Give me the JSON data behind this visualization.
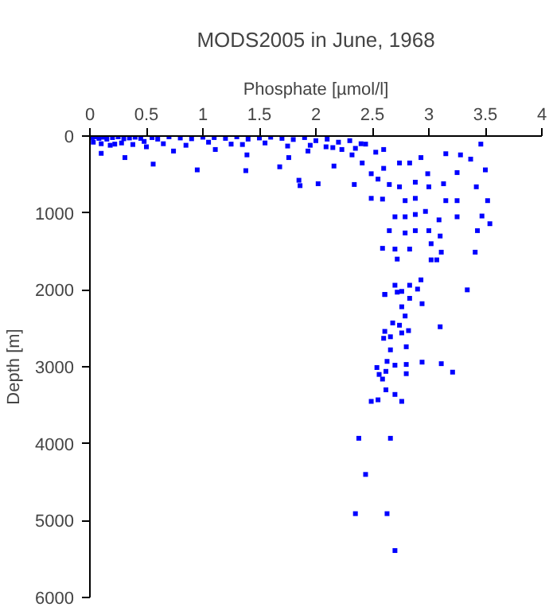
{
  "chart_data": {
    "type": "scatter",
    "title": "MODS2005 in June, 1968",
    "xlabel": "Phosphate [µmol/l]",
    "ylabel": "Depth [m]",
    "marker": "square",
    "grid": false,
    "xlim": [
      0,
      4
    ],
    "ylim": [
      6000,
      0
    ],
    "xticks": [
      0,
      0.5,
      1,
      1.5,
      2,
      2.5,
      3,
      3.5,
      4
    ],
    "yticks": [
      0,
      1000,
      2000,
      3000,
      4000,
      5000,
      6000
    ],
    "series": [
      {
        "color": "#0000ff",
        "x": [
          0.02,
          0.05,
          0.08,
          0.12,
          0.15,
          0.2,
          0.25,
          0.3,
          0.35,
          0.4,
          0.45,
          0.55,
          0.6,
          0.7,
          0.8,
          0.9,
          1.0,
          1.1,
          1.2,
          1.3,
          1.4,
          1.5,
          1.6,
          1.7,
          1.8,
          1.9,
          2.0,
          2.1,
          2.2,
          2.3,
          2.4,
          0.03,
          0.1,
          0.18,
          0.28,
          0.38,
          0.48,
          0.65,
          0.85,
          1.05,
          1.35,
          1.55,
          1.75,
          1.95,
          2.15,
          2.35,
          0.1,
          0.31,
          0.56,
          0.95,
          1.38,
          1.68,
          1.85,
          1.86,
          2.02,
          2.16,
          2.34,
          2.49,
          2.59,
          2.65,
          2.59,
          2.61,
          2.76,
          2.93,
          3.34,
          3.46,
          3.5,
          3.52,
          3.54,
          3.47,
          3.43,
          3.41,
          3.42,
          3.37,
          3.28,
          3.25,
          3.15,
          3.13,
          3.15,
          3.25,
          3.25,
          3.09,
          3.1,
          3.11,
          3.02,
          3.02,
          3.07,
          2.99,
          2.93,
          2.83,
          2.74,
          2.88,
          2.79,
          2.88,
          2.79,
          2.7,
          2.88,
          2.79,
          2.7,
          2.83,
          2.72,
          3.0,
          2.97,
          3.0,
          2.88,
          2.74,
          2.65,
          2.55,
          2.49,
          2.6,
          2.41,
          2.32,
          2.23,
          2.53,
          2.6,
          2.44,
          1.39,
          1.11,
          0.74,
          0.5,
          0.22,
          1.25,
          1.76,
          1.93,
          2.09,
          2.38,
          2.66,
          2.44,
          2.35,
          2.63,
          2.7,
          2.49,
          2.55,
          2.76,
          2.7,
          2.62,
          3.21,
          3.11,
          2.94,
          2.8,
          2.8,
          2.7,
          2.62,
          2.56,
          2.59,
          2.54,
          2.63,
          2.66,
          2.8,
          2.6,
          2.66,
          2.61,
          2.76,
          2.82,
          3.1,
          2.68,
          2.74,
          2.79,
          2.76,
          2.61,
          2.7,
          2.83,
          2.9,
          2.72,
          2.83,
          2.94
        ],
        "values": [
          20,
          10,
          30,
          15,
          40,
          20,
          10,
          35,
          25,
          15,
          30,
          20,
          40,
          10,
          25,
          35,
          15,
          20,
          30,
          10,
          40,
          25,
          15,
          30,
          45,
          20,
          60,
          40,
          80,
          60,
          100,
          80,
          100,
          120,
          90,
          110,
          70,
          100,
          120,
          80,
          110,
          90,
          130,
          120,
          150,
          160,
          225,
          280,
          365,
          440,
          450,
          400,
          575,
          645,
          620,
          390,
          630,
          810,
          820,
          1230,
          1460,
          2060,
          2020,
          1870,
          2000,
          105,
          440,
          840,
          1140,
          1040,
          1230,
          1510,
          660,
          300,
          245,
          475,
          230,
          620,
          840,
          840,
          1050,
          1090,
          1300,
          1510,
          1400,
          1610,
          1610,
          490,
          280,
          350,
          350,
          810,
          840,
          1020,
          1050,
          1050,
          1230,
          1260,
          1470,
          1470,
          1600,
          1230,
          980,
          660,
          600,
          660,
          630,
          560,
          490,
          420,
          350,
          245,
          175,
          210,
          175,
          105,
          245,
          175,
          195,
          140,
          105,
          105,
          280,
          195,
          140,
          3930,
          3930,
          4400,
          4910,
          4910,
          5390,
          3450,
          3430,
          3450,
          3360,
          3300,
          3070,
          2960,
          2940,
          2970,
          3090,
          2980,
          3060,
          3100,
          3160,
          3010,
          2930,
          2780,
          2740,
          2630,
          2610,
          2540,
          2560,
          2530,
          2480,
          2430,
          2460,
          2340,
          2220,
          2060,
          1940,
          1940,
          1990,
          2030,
          2110,
          2180
        ]
      }
    ]
  }
}
